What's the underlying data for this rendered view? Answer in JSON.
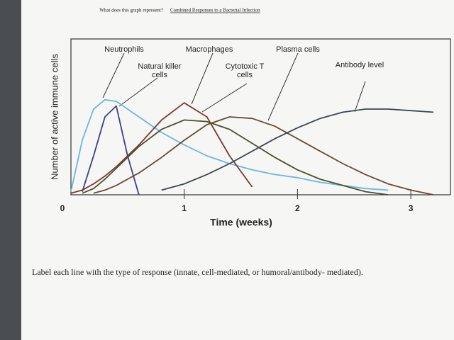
{
  "question": "What does this graph represent?",
  "answer": "Combined Responses to a Bacterial Infection",
  "instruction": "Label each line with the type of response (innate, cell-mediated, or humoral/antibody- mediated).",
  "chart_data": {
    "type": "line",
    "x_label": "Time (weeks)",
    "y_label": "Number of active immune cells",
    "x": [
      0,
      0.1,
      0.2,
      0.3,
      0.4,
      0.5,
      0.6,
      0.8,
      1.0,
      1.2,
      1.4,
      1.6,
      1.8,
      2.0,
      2.2,
      2.4,
      2.6,
      2.8,
      3.0,
      3.2
    ],
    "xlim": [
      0,
      3.35
    ],
    "xticks": [
      0,
      1,
      2,
      3
    ],
    "ylim": [
      0,
      100
    ],
    "series": [
      {
        "name": "Neutrophils",
        "color": "#6cb6e2",
        "values": [
          2,
          35,
          55,
          61,
          60,
          55,
          50,
          40,
          32,
          25,
          20,
          16,
          13,
          11,
          8,
          6,
          4,
          3,
          null,
          null
        ]
      },
      {
        "name": "Natural killer cells",
        "color": "#3d3f8c",
        "values": [
          null,
          2,
          25,
          50,
          57,
          25,
          0,
          null,
          null,
          null,
          null,
          null,
          null,
          null,
          null,
          null,
          null,
          null,
          null,
          null
        ]
      },
      {
        "name": "Macrophages",
        "color": "#7a3b2e",
        "values": [
          1,
          3,
          7,
          12,
          18,
          25,
          32,
          48,
          59,
          50,
          25,
          5,
          null,
          null,
          null,
          null,
          null,
          null,
          null,
          null
        ]
      },
      {
        "name": "Cytotoxic T cells",
        "color": "#4b5030",
        "values": [
          null,
          1,
          4,
          10,
          17,
          24,
          31,
          42,
          48,
          47,
          42,
          33,
          24,
          16,
          10,
          6,
          2,
          0,
          null,
          null
        ]
      },
      {
        "name": "Plasma cells",
        "color": "#6b4a30",
        "values": [
          null,
          null,
          1,
          3,
          6,
          10,
          14,
          24,
          35,
          45,
          50,
          49,
          44,
          36,
          28,
          20,
          13,
          7,
          3,
          0
        ]
      },
      {
        "name": "Antibody level",
        "color": "#3a4652",
        "values": [
          null,
          null,
          null,
          null,
          null,
          null,
          null,
          3,
          7,
          13,
          20,
          28,
          36,
          43,
          49,
          53,
          55,
          55,
          54,
          53
        ]
      }
    ]
  }
}
